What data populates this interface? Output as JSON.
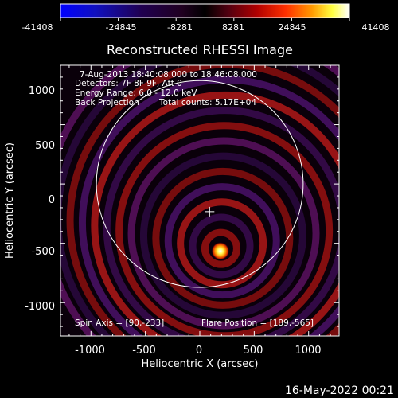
{
  "colorbar": {
    "ticks": [
      "-41408",
      "-24845",
      "-8281",
      "8281",
      "24845",
      "41408"
    ],
    "tick_values": [
      -41408,
      -24845,
      -8281,
      8281,
      24845,
      41408
    ],
    "range": [
      -41408,
      41408
    ],
    "colormap": [
      "#0000ff",
      "#000044",
      "#000000",
      "#400040",
      "#800000",
      "#ff0000",
      "#ff8800",
      "#ffff00",
      "#ffffff"
    ]
  },
  "plot": {
    "title": "Reconstructed RHESSI Image",
    "xlabel": "Heliocentric X (arcsec)",
    "ylabel": "Heliocentric Y (arcsec)",
    "xticks": [
      "-1000",
      "-500",
      "0",
      "500",
      "1000"
    ],
    "xtick_values": [
      -1000,
      -500,
      0,
      500,
      1000
    ],
    "yticks": [
      "-1000",
      "-500",
      "0",
      "500",
      "1000"
    ],
    "ytick_values": [
      -1000,
      -500,
      0,
      500,
      1000
    ],
    "xlim": [
      -1280,
      1280
    ],
    "ylim": [
      -1280,
      1000
    ],
    "solar_disk_radius": 950,
    "spin_axis": [
      90,
      -233
    ],
    "flare_position": [
      189,
      -565
    ]
  },
  "annotations": {
    "line1": "7-Aug-2013 18:40:08.000 to 18:46:08.000",
    "line2": "Detectors: 7F 8F 9F, Att 0",
    "line3": "Energy Range: 6.0 - 12.0 keV",
    "line4_left": "Back Projection",
    "line4_right": "Total counts: 5.17E+04",
    "spin_axis_label": "Spin Axis = [90,-233]",
    "flare_position_label": "Flare Position = [189,-565]"
  },
  "footer": {
    "timestamp": "16-May-2022 00:21"
  }
}
